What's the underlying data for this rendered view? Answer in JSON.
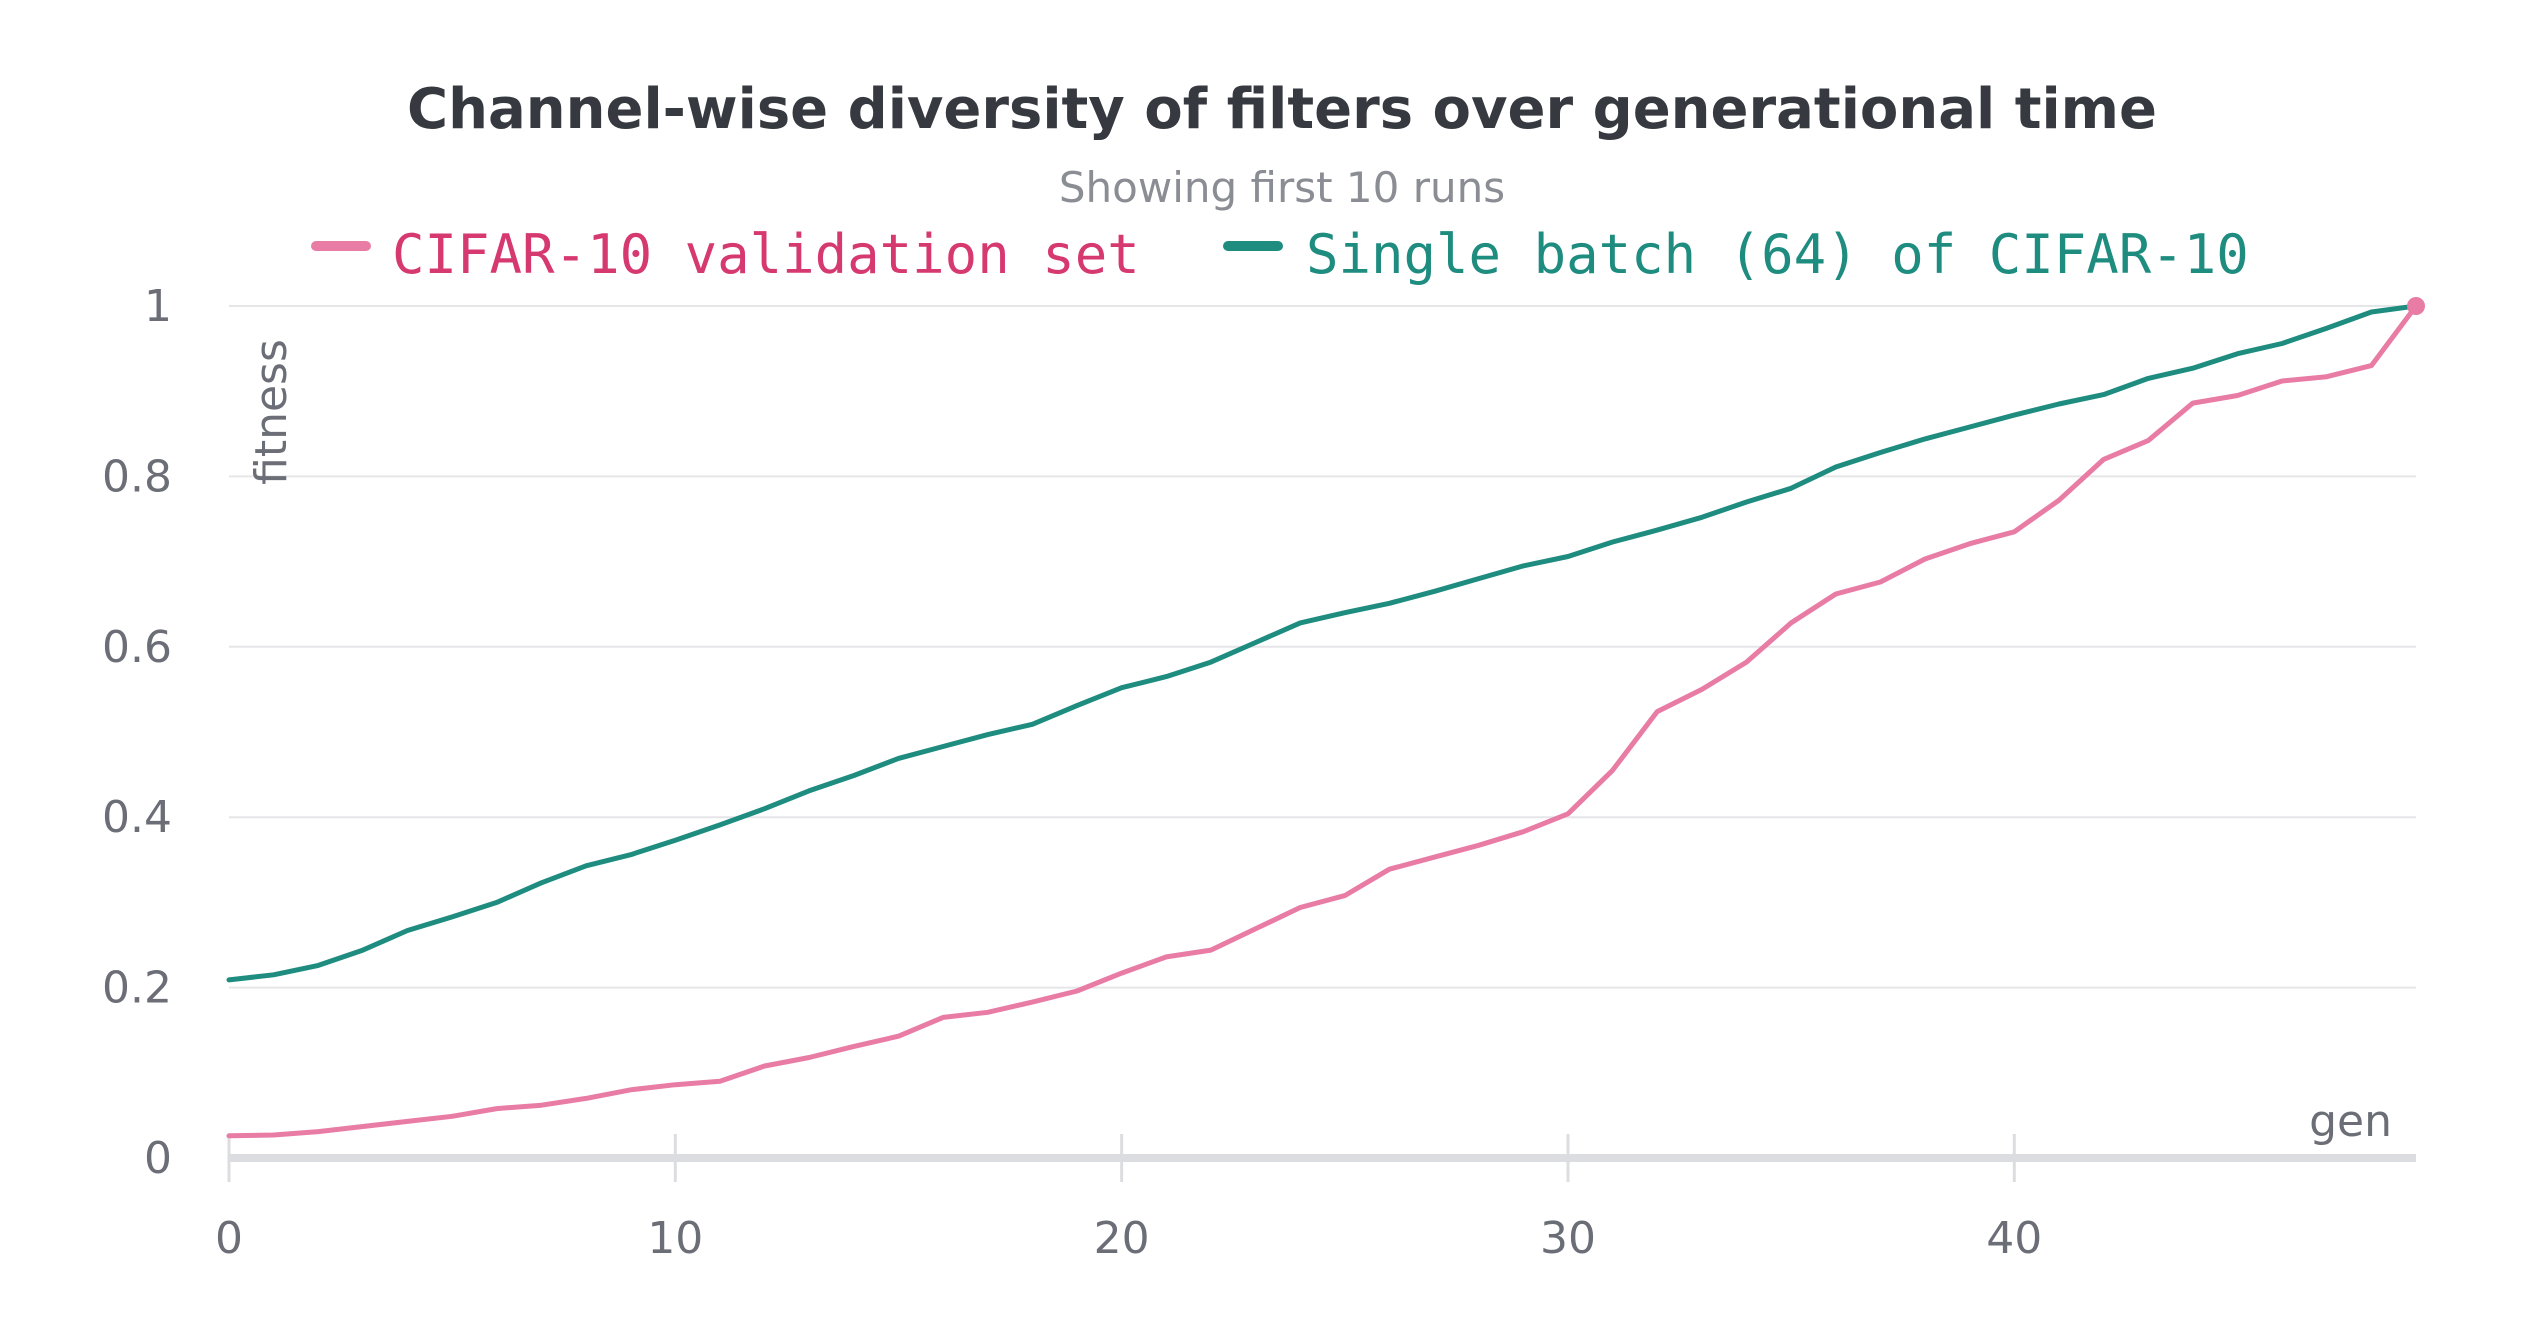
{
  "chart_data": {
    "type": "line",
    "title": "Channel-wise diversity of filters over generational time",
    "subtitle": "Showing first 10 runs",
    "xlabel": "gen",
    "ylabel": "fitness",
    "xlim": [
      0,
      49
    ],
    "ylim": [
      0,
      1
    ],
    "x_ticks": [
      0,
      10,
      20,
      30,
      40
    ],
    "x_tick_labels": [
      "0",
      "10",
      "20",
      "30",
      "40"
    ],
    "y_ticks": [
      0,
      0.2,
      0.4,
      0.6,
      0.8,
      1
    ],
    "y_tick_labels": [
      "0",
      "0.2",
      "0.4",
      "0.6",
      "0.8",
      "1"
    ],
    "grid": true,
    "legend_position": "top",
    "x": [
      0,
      1,
      2,
      3,
      4,
      5,
      6,
      7,
      8,
      9,
      10,
      11,
      12,
      13,
      14,
      15,
      16,
      17,
      18,
      19,
      20,
      21,
      22,
      23,
      24,
      25,
      26,
      27,
      28,
      29,
      30,
      31,
      32,
      33,
      34,
      35,
      36,
      37,
      38,
      39,
      40,
      41,
      42,
      43,
      44,
      45,
      46,
      47,
      48,
      49
    ],
    "series": [
      {
        "name": "CIFAR-10 validation set",
        "color": "#e87ca5",
        "legend_text_color": "#d6396f",
        "values": [
          0.026,
          0.027,
          0.031,
          0.037,
          0.043,
          0.049,
          0.058,
          0.062,
          0.07,
          0.08,
          0.086,
          0.09,
          0.108,
          0.118,
          0.131,
          0.143,
          0.165,
          0.171,
          0.183,
          0.196,
          0.217,
          0.236,
          0.244,
          0.269,
          0.294,
          0.308,
          0.339,
          0.353,
          0.367,
          0.383,
          0.404,
          0.455,
          0.524,
          0.55,
          0.582,
          0.628,
          0.662,
          0.676,
          0.703,
          0.721,
          0.735,
          0.772,
          0.82,
          0.842,
          0.886,
          0.895,
          0.912,
          0.917,
          0.93,
          1.0
        ]
      },
      {
        "name": "Single batch (64) of CIFAR-10",
        "color": "#1f8c80",
        "legend_text_color": "#1f8c80",
        "values": [
          0.209,
          0.215,
          0.226,
          0.244,
          0.267,
          0.283,
          0.3,
          0.323,
          0.343,
          0.356,
          0.373,
          0.391,
          0.41,
          0.431,
          0.449,
          0.469,
          0.483,
          0.497,
          0.509,
          0.531,
          0.552,
          0.565,
          0.582,
          0.605,
          0.628,
          0.64,
          0.651,
          0.665,
          0.68,
          0.695,
          0.706,
          0.723,
          0.737,
          0.752,
          0.77,
          0.786,
          0.811,
          0.828,
          0.844,
          0.858,
          0.872,
          0.885,
          0.896,
          0.915,
          0.927,
          0.944,
          0.956,
          0.974,
          0.993,
          1.0
        ]
      }
    ]
  }
}
